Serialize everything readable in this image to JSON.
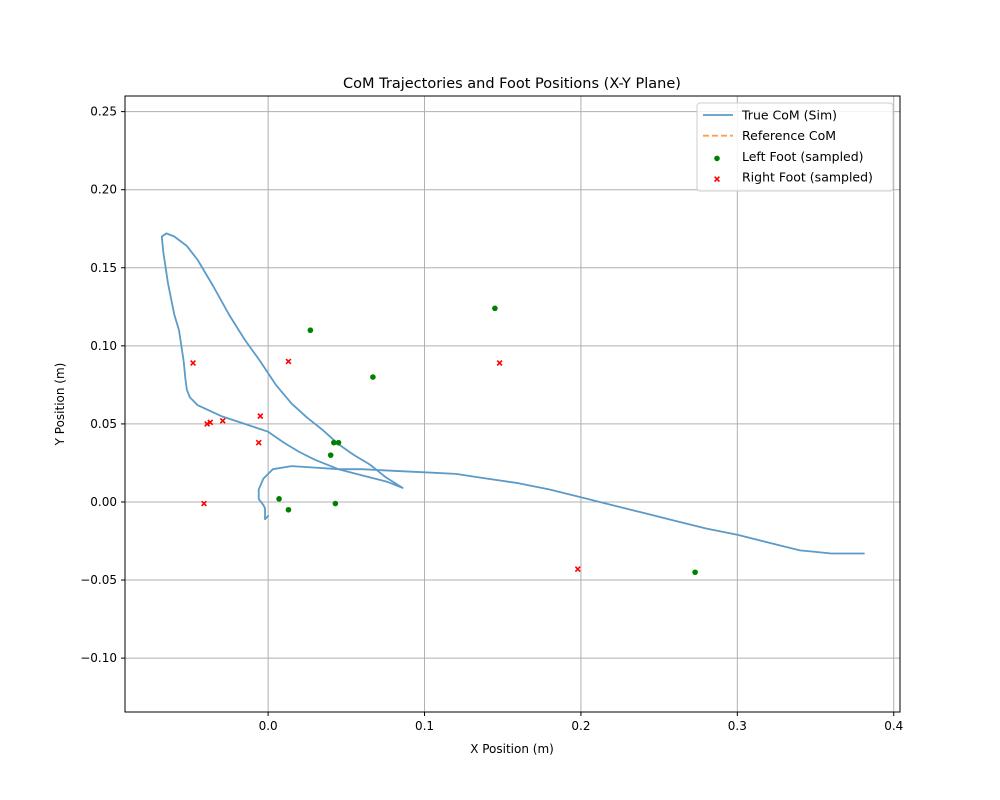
{
  "chart_data": {
    "type": "scatter",
    "title": "CoM Trajectories and Foot Positions (X-Y Plane)",
    "xlabel": "X Position (m)",
    "ylabel": "Y Position (m)",
    "xlim": [
      -0.0915,
      0.404
    ],
    "ylim": [
      -0.1345,
      0.26
    ],
    "grid": true,
    "legend_position": "top-right",
    "x_ticks": [
      0.0,
      0.1,
      0.2,
      0.3,
      0.4
    ],
    "x_tick_labels": [
      "0.0",
      "0.1",
      "0.2",
      "0.3",
      "0.4"
    ],
    "y_ticks": [
      -0.1,
      -0.05,
      0.0,
      0.05,
      0.1,
      0.15,
      0.2,
      0.25
    ],
    "y_tick_labels": [
      "−0.10",
      "−0.05",
      "0.00",
      "0.05",
      "0.10",
      "0.15",
      "0.20",
      "0.25"
    ],
    "series": [
      {
        "name": "True CoM (Sim)",
        "kind": "line",
        "color": "#5b9bc9",
        "points": [
          [
            0.0,
            -0.009
          ],
          [
            -0.002,
            -0.011
          ],
          [
            -0.002,
            -0.004
          ],
          [
            -0.003,
            -0.002
          ],
          [
            -0.006,
            0.002
          ],
          [
            -0.006,
            0.008
          ],
          [
            -0.003,
            0.015
          ],
          [
            0.003,
            0.021
          ],
          [
            0.015,
            0.023
          ],
          [
            0.03,
            0.022
          ],
          [
            0.045,
            0.021
          ],
          [
            0.06,
            0.021
          ],
          [
            0.08,
            0.02
          ],
          [
            0.1,
            0.019
          ],
          [
            0.12,
            0.018
          ],
          [
            0.14,
            0.015
          ],
          [
            0.16,
            0.012
          ],
          [
            0.18,
            0.008
          ],
          [
            0.2,
            0.003
          ],
          [
            0.22,
            -0.002
          ],
          [
            0.24,
            -0.007
          ],
          [
            0.26,
            -0.012
          ],
          [
            0.28,
            -0.017
          ],
          [
            0.3,
            -0.021
          ],
          [
            0.32,
            -0.026
          ],
          [
            0.34,
            -0.031
          ],
          [
            0.35,
            -0.032
          ],
          [
            0.36,
            -0.033
          ],
          [
            0.381,
            -0.033
          ]
        ]
      },
      {
        "name": "True CoM (Sim)",
        "kind": "line",
        "color": "#5b9bc9",
        "points": [
          [
            0.086,
            0.009
          ],
          [
            0.076,
            0.013
          ],
          [
            0.06,
            0.017
          ],
          [
            0.045,
            0.021
          ],
          [
            0.03,
            0.027
          ],
          [
            0.02,
            0.032
          ],
          [
            0.01,
            0.038
          ],
          [
            0.0,
            0.045
          ],
          [
            -0.015,
            0.05
          ],
          [
            -0.03,
            0.055
          ],
          [
            -0.045,
            0.062
          ],
          [
            -0.05,
            0.067
          ],
          [
            -0.052,
            0.072
          ],
          [
            -0.053,
            0.08
          ],
          [
            -0.054,
            0.09
          ],
          [
            -0.057,
            0.11
          ],
          [
            -0.06,
            0.12
          ],
          [
            -0.064,
            0.14
          ],
          [
            -0.067,
            0.16
          ],
          [
            -0.068,
            0.17
          ],
          [
            -0.065,
            0.172
          ],
          [
            -0.06,
            0.17
          ],
          [
            -0.052,
            0.164
          ],
          [
            -0.045,
            0.155
          ],
          [
            -0.035,
            0.138
          ],
          [
            -0.025,
            0.12
          ],
          [
            -0.015,
            0.104
          ],
          [
            -0.005,
            0.09
          ],
          [
            0.005,
            0.075
          ],
          [
            0.015,
            0.063
          ],
          [
            0.025,
            0.054
          ],
          [
            0.035,
            0.046
          ],
          [
            0.045,
            0.037
          ],
          [
            0.055,
            0.03
          ],
          [
            0.065,
            0.024
          ],
          [
            0.075,
            0.016
          ],
          [
            0.086,
            0.009
          ]
        ]
      },
      {
        "name": "Left Foot (sampled)",
        "kind": "scatter",
        "marker": "circle",
        "color": "#008000",
        "points": [
          [
            0.027,
            0.11
          ],
          [
            0.067,
            0.08
          ],
          [
            0.145,
            0.124
          ],
          [
            0.042,
            0.038
          ],
          [
            0.045,
            0.038
          ],
          [
            0.04,
            0.03
          ],
          [
            0.007,
            0.002
          ],
          [
            0.013,
            -0.005
          ],
          [
            0.043,
            -0.001
          ],
          [
            0.273,
            -0.045
          ]
        ]
      },
      {
        "name": "Right Foot (sampled)",
        "kind": "scatter",
        "marker": "x",
        "color": "#ff0000",
        "points": [
          [
            -0.048,
            0.089
          ],
          [
            0.013,
            0.09
          ],
          [
            0.148,
            0.089
          ],
          [
            -0.039,
            0.05
          ],
          [
            -0.037,
            0.051
          ],
          [
            -0.029,
            0.052
          ],
          [
            -0.005,
            0.055
          ],
          [
            -0.006,
            0.038
          ],
          [
            -0.041,
            -0.001
          ],
          [
            0.198,
            -0.043
          ]
        ]
      }
    ],
    "legend": [
      {
        "label": "True CoM (Sim)",
        "kind": "line",
        "color": "#5b9bc9"
      },
      {
        "label": "Reference CoM",
        "kind": "dashed",
        "color": "#ff9f4a"
      },
      {
        "label": "Left Foot (sampled)",
        "kind": "circle",
        "color": "#008000"
      },
      {
        "label": "Right Foot (sampled)",
        "kind": "x",
        "color": "#ff0000"
      }
    ]
  }
}
